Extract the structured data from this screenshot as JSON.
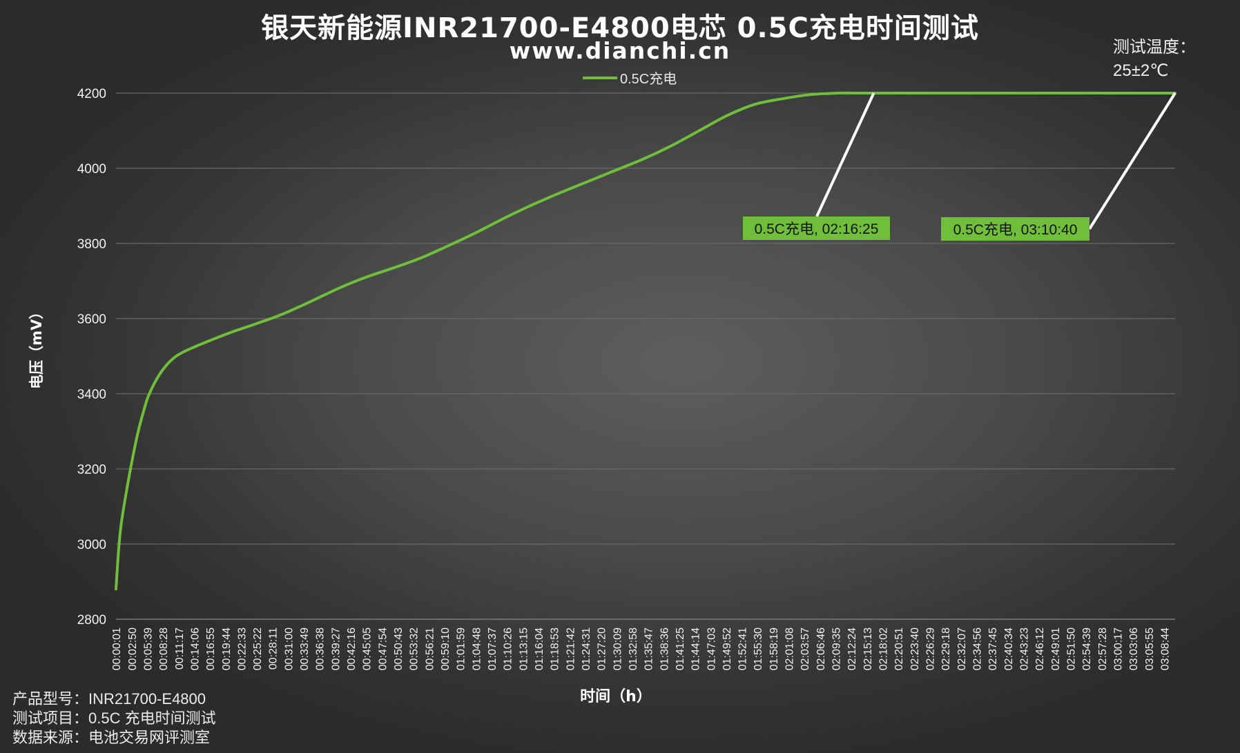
{
  "title": "银天新能源INR21700-E4800电芯 0.5C充电时间测试",
  "subtitle": "www.dianchi.cn",
  "legend": {
    "label": "0.5C充电",
    "color": "#6fbf3a"
  },
  "test_temp": {
    "label": "测试温度：",
    "value": "25±2℃"
  },
  "info": {
    "model": "产品型号：INR21700-E4800",
    "project": "测试项目：0.5C 充电时间测试",
    "source": "数据来源：电池交易网评测室"
  },
  "chart_data": {
    "type": "line",
    "xlabel": "时间（h）",
    "ylabel": "电压（mV）",
    "ylim": [
      2800,
      4200
    ],
    "yticks": [
      2800,
      3000,
      3200,
      3400,
      3600,
      3800,
      4000,
      4200
    ],
    "grid": true,
    "legend_position": "top",
    "x_ticks": [
      "00:00:01",
      "00:02:50",
      "00:05:39",
      "00:08:28",
      "00:11:17",
      "00:14:06",
      "00:16:55",
      "00:19:44",
      "00:22:33",
      "00:25:22",
      "00:28:11",
      "00:31:00",
      "00:33:49",
      "00:36:38",
      "00:39:27",
      "00:42:16",
      "00:45:05",
      "00:47:54",
      "00:50:43",
      "00:53:32",
      "00:56:21",
      "00:59:10",
      "01:01:59",
      "01:04:48",
      "01:07:37",
      "01:10:26",
      "01:13:15",
      "01:16:04",
      "01:18:53",
      "01:21:42",
      "01:24:31",
      "01:27:20",
      "01:30:09",
      "01:32:58",
      "01:35:47",
      "01:38:36",
      "01:41:25",
      "01:44:14",
      "01:47:03",
      "01:49:52",
      "01:52:41",
      "01:55:30",
      "01:58:19",
      "02:01:08",
      "02:03:57",
      "02:06:46",
      "02:09:35",
      "02:12:24",
      "02:15:13",
      "02:18:02",
      "02:20:51",
      "02:23:40",
      "02:26:29",
      "02:29:18",
      "02:32:07",
      "02:34:56",
      "02:37:45",
      "02:40:34",
      "02:43:23",
      "02:46:12",
      "02:49:01",
      "02:51:50",
      "02:54:39",
      "02:57:28",
      "03:00:17",
      "03:03:06",
      "03:05:55",
      "03:08:44"
    ],
    "series": [
      {
        "name": "0.5C充电",
        "color": "#6fbf3a",
        "x_min": [
          0,
          0.5,
          1,
          2,
          3,
          4,
          5,
          6,
          8,
          10,
          12,
          15,
          18,
          21,
          25,
          30,
          35,
          40,
          45,
          50,
          55,
          60,
          65,
          70,
          75,
          80,
          85,
          90,
          95,
          100,
          105,
          110,
          115,
          120,
          125,
          130,
          133,
          136.4,
          140,
          150,
          160,
          170,
          180,
          190.67
        ],
        "values": [
          2880,
          2990,
          3060,
          3150,
          3230,
          3300,
          3355,
          3400,
          3455,
          3490,
          3510,
          3530,
          3548,
          3565,
          3585,
          3612,
          3645,
          3680,
          3710,
          3735,
          3762,
          3795,
          3830,
          3868,
          3903,
          3935,
          3965,
          3995,
          4025,
          4060,
          4100,
          4140,
          4170,
          4185,
          4196,
          4200,
          4200,
          4200,
          4200,
          4200,
          4200,
          4200,
          4200,
          4200
        ]
      }
    ],
    "annotations": [
      {
        "text": "0.5C充电, 02:16:25",
        "x": "02:16:25",
        "y": 4200
      },
      {
        "text": "0.5C充电, 03:10:40",
        "x": "03:10:40",
        "y": 4200
      }
    ]
  }
}
